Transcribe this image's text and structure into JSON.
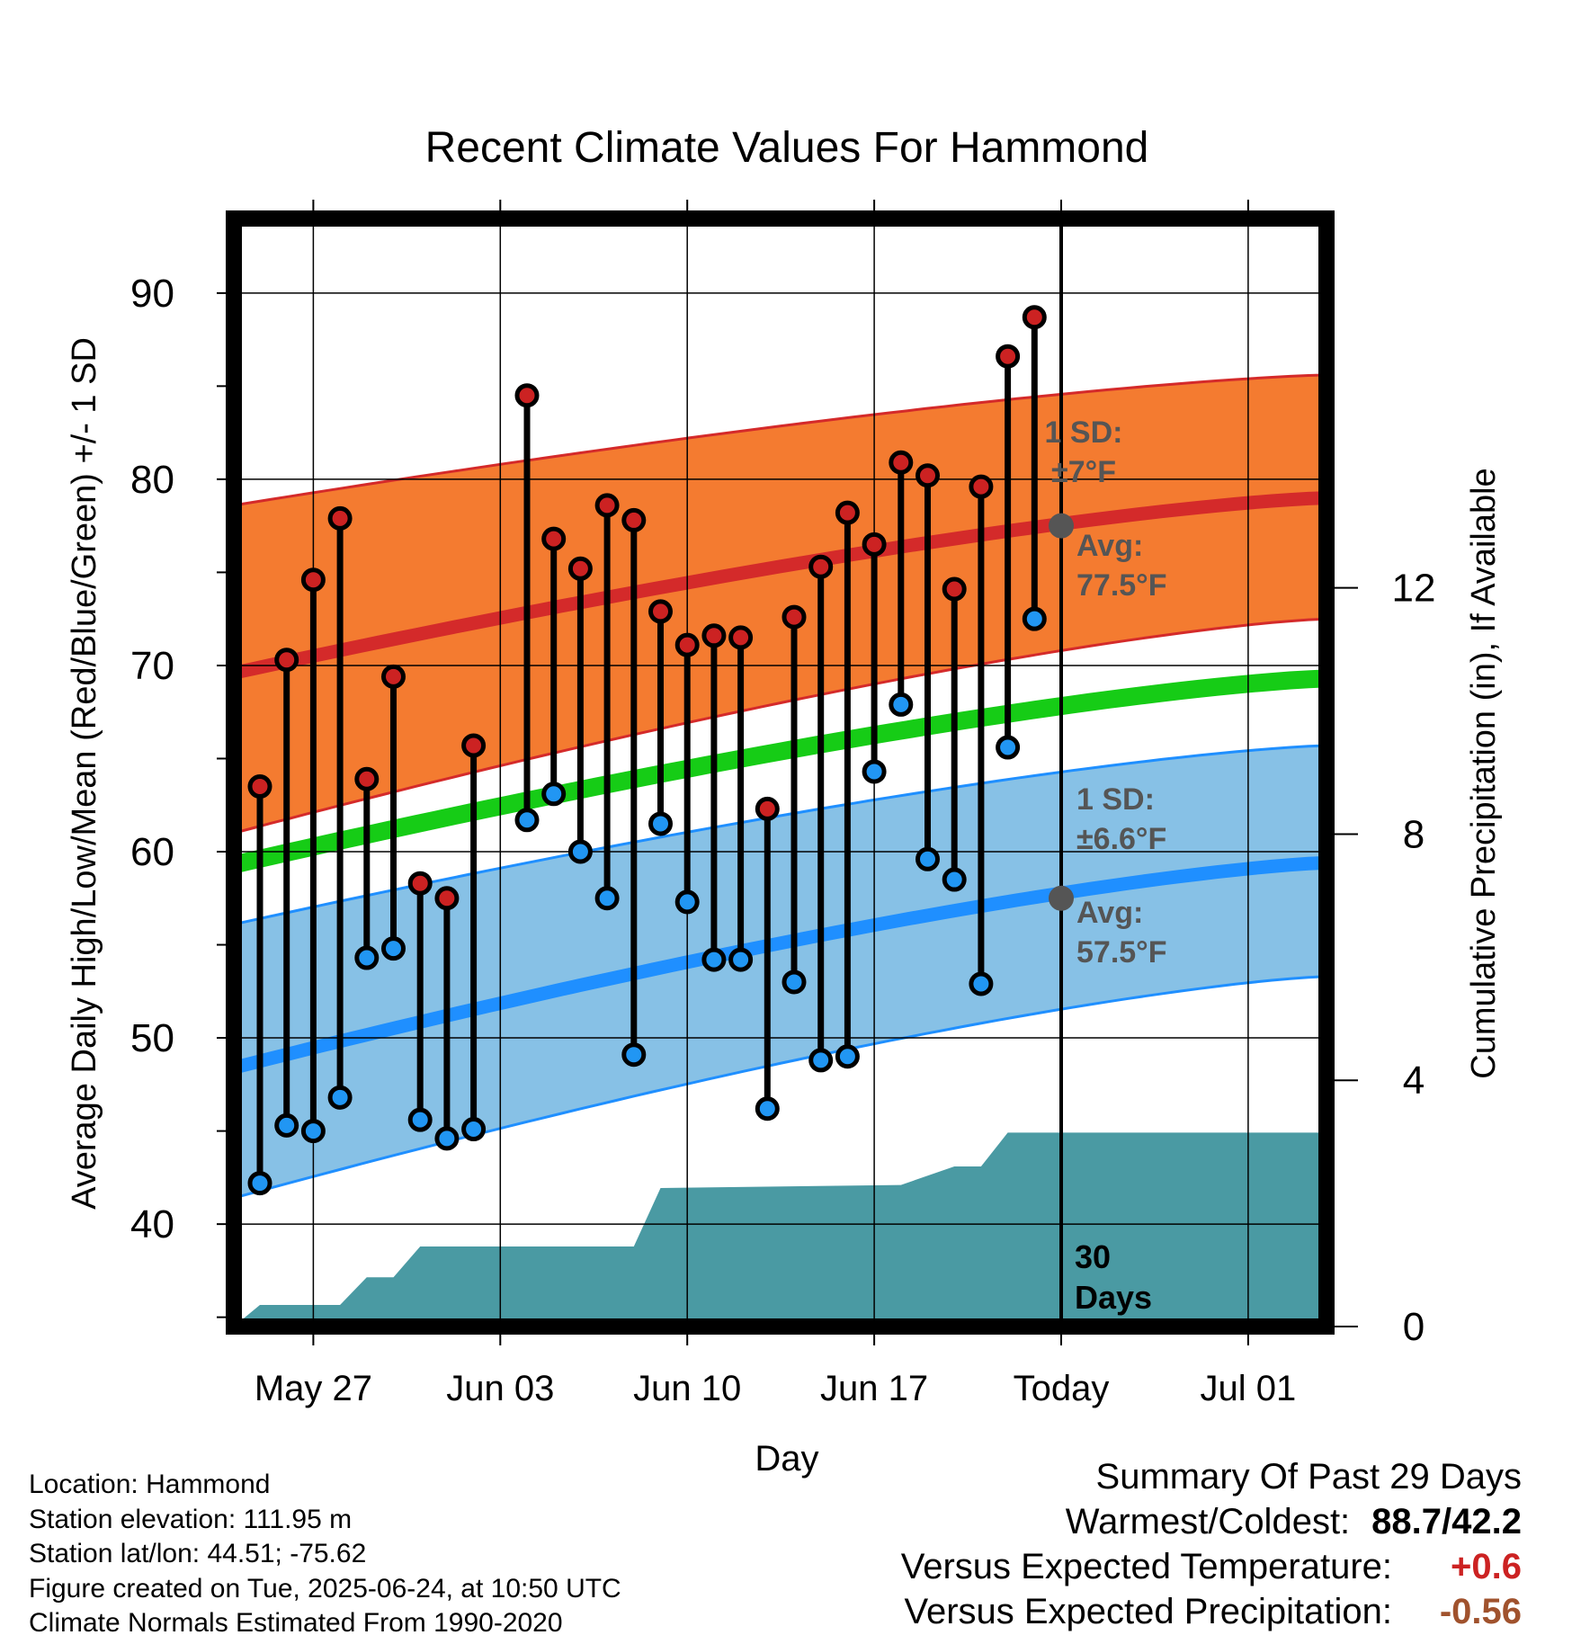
{
  "chart_data": {
    "type": "line",
    "title": "Recent Climate Values For Hammond",
    "xlabel": "Day",
    "ylabel": "Average Daily High/Low/Mean (Red/Blue/Green) +/- 1 SD",
    "y2label": "Cumulative Precipitation (in), If Available",
    "x_ticks": [
      "May 27",
      "Jun 03",
      "Jun 10",
      "Jun 17",
      "Today",
      "Jul 01"
    ],
    "ylim": [
      34.5,
      94
    ],
    "y_ticks": [
      40,
      50,
      60,
      70,
      80,
      90
    ],
    "y2lim": [
      0,
      18
    ],
    "y2_ticks": [
      0,
      4,
      8,
      12
    ],
    "grid": true,
    "colors": {
      "high_band": "#f47b30",
      "high_line": "#d42a2a",
      "low_band": "#87c1e6",
      "low_line": "#1f8fff",
      "mean_line": "#16cc16",
      "precip": "#4a9aa3",
      "high_dot": "#cc2222",
      "low_dot": "#2196f3",
      "temp_anomaly": "#cc2222",
      "precip_anomaly": "#a0522d"
    },
    "days": [
      "May 25",
      "May 26",
      "May 27",
      "May 28",
      "May 29",
      "May 30",
      "May 31",
      "Jun 01",
      "Jun 02",
      "Jun 03",
      "Jun 04",
      "Jun 05",
      "Jun 06",
      "Jun 07",
      "Jun 08",
      "Jun 09",
      "Jun 10",
      "Jun 11",
      "Jun 12",
      "Jun 13",
      "Jun 14",
      "Jun 15",
      "Jun 16",
      "Jun 17",
      "Jun 18",
      "Jun 19",
      "Jun 20",
      "Jun 21",
      "Jun 22",
      "Jun 23",
      "Jun 24",
      "Jun 25",
      "Jun 26",
      "Jun 27",
      "Jun 28",
      "Jun 29",
      "Jun 30",
      "Jul 01",
      "Jul 02",
      "Jul 03"
    ],
    "series": [
      {
        "name": "High",
        "values": [
          63.5,
          70.3,
          74.6,
          77.9,
          63.9,
          69.4,
          58.3,
          57.5,
          65.7,
          null,
          84.5,
          76.8,
          75.2,
          78.6,
          77.8,
          72.9,
          71.1,
          71.6,
          71.5,
          62.3,
          72.6,
          75.3,
          78.2,
          76.5,
          80.9,
          80.2,
          74.1,
          79.6,
          86.6,
          88.7
        ]
      },
      {
        "name": "Low",
        "values": [
          42.2,
          45.3,
          45.0,
          46.8,
          54.3,
          54.8,
          45.6,
          44.6,
          45.1,
          null,
          61.7,
          63.1,
          60.0,
          57.5,
          49.1,
          61.5,
          57.3,
          54.2,
          54.2,
          46.2,
          53.0,
          48.8,
          49.0,
          64.3,
          67.9,
          59.6,
          58.5,
          52.9,
          65.6,
          72.5
        ]
      }
    ],
    "normals": {
      "high_avg": [
        69.6,
        79.0
      ],
      "high_upper": [
        78.6,
        85.6
      ],
      "high_lower": [
        61.0,
        72.5
      ],
      "mean": [
        59.3,
        69.3
      ],
      "low_avg": [
        48.4,
        59.4
      ],
      "low_upper": [
        56.1,
        65.7
      ],
      "low_lower": [
        41.4,
        53.3
      ]
    },
    "cumulative_precip": [
      {
        "day": "May 25",
        "value": 0.0
      },
      {
        "day": "May 25",
        "value": 0.35
      },
      {
        "day": "May 26",
        "value": 0.35
      },
      {
        "day": "May 28",
        "value": 0.35
      },
      {
        "day": "May 29",
        "value": 0.8
      },
      {
        "day": "May 30",
        "value": 0.8
      },
      {
        "day": "May 31",
        "value": 1.3
      },
      {
        "day": "Jun 08",
        "value": 1.3
      },
      {
        "day": "Jun 09",
        "value": 2.25
      },
      {
        "day": "Jun 18",
        "value": 2.3
      },
      {
        "day": "Jun 20",
        "value": 2.6
      },
      {
        "day": "Jun 21",
        "value": 2.6
      },
      {
        "day": "Jun 22",
        "value": 3.15
      },
      {
        "day": "Jul 03",
        "value": 3.15
      }
    ],
    "annotations": {
      "high_sd": "1 SD:",
      "high_sd_value": "±7°F",
      "high_avg": "Avg:",
      "high_avg_value": "77.5°F",
      "low_sd": "1 SD:",
      "low_sd_value": "±6.6°F",
      "low_avg": "Avg:",
      "low_avg_value": "57.5°F",
      "window_line1": "30",
      "window_line2": "Days",
      "today_high_avg": 77.5,
      "today_low_avg": 57.5
    }
  },
  "footer": {
    "location": "Location: Hammond",
    "elevation": "Station elevation: 111.95 m",
    "latlon": "Station lat/lon: 44.51; -75.62",
    "created": "Figure created on Tue, 2025-06-24, at 10:50 UTC",
    "normals": "Climate Normals Estimated From 1990-2020"
  },
  "summary": {
    "title": "Summary Of Past 29 Days",
    "warmest_coldest_label": "Warmest/Coldest:",
    "warmest_coldest_value": "88.7/42.2",
    "temp_label": "Versus Expected Temperature:",
    "temp_value": "+0.6",
    "precip_label": "Versus Expected Precipitation:",
    "precip_value": "-0.56"
  }
}
